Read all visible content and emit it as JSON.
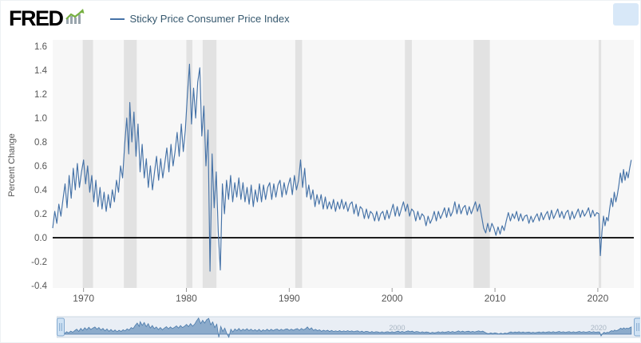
{
  "header": {
    "logo": "FRED",
    "legend_label": "Sticky Price Consumer Price Index"
  },
  "colors": {
    "series": "#4572a7",
    "recession_band": "#e2e2e2",
    "plot_bg": "#f7f7f7",
    "zero_line": "#000000",
    "axis_text": "#555555",
    "brush_bg": "#e9eef5",
    "brush_border": "#c5d3e0",
    "brush_fill": "#82a3c6",
    "brush_stroke": "#4c7bab",
    "brush_label": "#a9b6c3",
    "handle_fill": "#cfe2f4",
    "handle_border": "#83a9cf",
    "logo_green": "#76b041",
    "logo_gray": "#9aa5ad"
  },
  "chart_data": {
    "type": "line",
    "title": "Sticky Price Consumer Price Index",
    "xlabel": "",
    "ylabel": "Percent Change",
    "x_range": [
      1967,
      2023.5
    ],
    "ylim": [
      -0.4,
      1.6
    ],
    "y_tick_labels": [
      "1.6",
      "1.4",
      "1.2",
      "1.0",
      "0.8",
      "0.6",
      "0.4",
      "0.2",
      "0.0",
      "-0.2",
      "-0.4"
    ],
    "x_tick_labels": [
      "1970",
      "1980",
      "1990",
      "2000",
      "2010",
      "2020"
    ],
    "grid": "off",
    "legend_position": "top",
    "recessions": [
      [
        1969.92,
        1970.92
      ],
      [
        1973.92,
        1975.17
      ],
      [
        1980.0,
        1980.58
      ],
      [
        1981.58,
        1982.92
      ],
      [
        1990.58,
        1991.25
      ],
      [
        2001.25,
        2001.92
      ],
      [
        2007.92,
        2009.5
      ],
      [
        2020.08,
        2020.33
      ]
    ],
    "series": [
      {
        "name": "Sticky Price Consumer Price Index",
        "points": [
          [
            1967.0,
            0.08
          ],
          [
            1967.2,
            0.22
          ],
          [
            1967.4,
            0.12
          ],
          [
            1967.6,
            0.28
          ],
          [
            1967.8,
            0.18
          ],
          [
            1968.0,
            0.32
          ],
          [
            1968.2,
            0.45
          ],
          [
            1968.4,
            0.25
          ],
          [
            1968.6,
            0.52
          ],
          [
            1968.8,
            0.33
          ],
          [
            1969.0,
            0.58
          ],
          [
            1969.2,
            0.4
          ],
          [
            1969.4,
            0.62
          ],
          [
            1969.6,
            0.42
          ],
          [
            1969.8,
            0.55
          ],
          [
            1970.0,
            0.65
          ],
          [
            1970.2,
            0.45
          ],
          [
            1970.4,
            0.6
          ],
          [
            1970.6,
            0.38
          ],
          [
            1970.8,
            0.52
          ],
          [
            1971.0,
            0.3
          ],
          [
            1971.2,
            0.48
          ],
          [
            1971.4,
            0.26
          ],
          [
            1971.6,
            0.42
          ],
          [
            1971.8,
            0.24
          ],
          [
            1972.0,
            0.38
          ],
          [
            1972.2,
            0.22
          ],
          [
            1972.4,
            0.36
          ],
          [
            1972.6,
            0.25
          ],
          [
            1972.8,
            0.4
          ],
          [
            1973.0,
            0.3
          ],
          [
            1973.2,
            0.48
          ],
          [
            1973.4,
            0.38
          ],
          [
            1973.6,
            0.6
          ],
          [
            1973.8,
            0.5
          ],
          [
            1974.0,
            0.78
          ],
          [
            1974.2,
            1.0
          ],
          [
            1974.4,
            0.7
          ],
          [
            1974.5,
            1.13
          ],
          [
            1974.7,
            0.8
          ],
          [
            1974.9,
            1.05
          ],
          [
            1975.1,
            0.68
          ],
          [
            1975.3,
            0.95
          ],
          [
            1975.5,
            0.55
          ],
          [
            1975.7,
            0.78
          ],
          [
            1975.9,
            0.5
          ],
          [
            1976.1,
            0.66
          ],
          [
            1976.3,
            0.42
          ],
          [
            1976.5,
            0.6
          ],
          [
            1976.7,
            0.4
          ],
          [
            1976.9,
            0.55
          ],
          [
            1977.1,
            0.68
          ],
          [
            1977.3,
            0.48
          ],
          [
            1977.5,
            0.66
          ],
          [
            1977.7,
            0.5
          ],
          [
            1977.9,
            0.62
          ],
          [
            1978.1,
            0.75
          ],
          [
            1978.3,
            0.55
          ],
          [
            1978.5,
            0.78
          ],
          [
            1978.7,
            0.6
          ],
          [
            1978.9,
            0.72
          ],
          [
            1979.1,
            0.88
          ],
          [
            1979.3,
            0.68
          ],
          [
            1979.5,
            0.95
          ],
          [
            1979.7,
            0.72
          ],
          [
            1979.9,
            0.9
          ],
          [
            1980.1,
            1.2
          ],
          [
            1980.3,
            1.45
          ],
          [
            1980.5,
            0.95
          ],
          [
            1980.7,
            1.25
          ],
          [
            1980.9,
            1.0
          ],
          [
            1981.1,
            1.3
          ],
          [
            1981.3,
            1.42
          ],
          [
            1981.5,
            0.85
          ],
          [
            1981.7,
            1.1
          ],
          [
            1981.9,
            0.6
          ],
          [
            1982.1,
            0.9
          ],
          [
            1982.3,
            -0.28
          ],
          [
            1982.5,
            0.7
          ],
          [
            1982.7,
            0.25
          ],
          [
            1982.9,
            0.55
          ],
          [
            1983.1,
            0.05
          ],
          [
            1983.3,
            -0.27
          ],
          [
            1983.5,
            0.45
          ],
          [
            1983.7,
            0.2
          ],
          [
            1983.9,
            0.48
          ],
          [
            1984.1,
            0.32
          ],
          [
            1984.3,
            0.52
          ],
          [
            1984.5,
            0.3
          ],
          [
            1984.7,
            0.46
          ],
          [
            1984.9,
            0.34
          ],
          [
            1985.1,
            0.5
          ],
          [
            1985.3,
            0.32
          ],
          [
            1985.5,
            0.46
          ],
          [
            1985.7,
            0.3
          ],
          [
            1985.9,
            0.42
          ],
          [
            1986.1,
            0.28
          ],
          [
            1986.3,
            0.44
          ],
          [
            1986.5,
            0.26
          ],
          [
            1986.7,
            0.4
          ],
          [
            1986.9,
            0.3
          ],
          [
            1987.1,
            0.45
          ],
          [
            1987.3,
            0.3
          ],
          [
            1987.5,
            0.44
          ],
          [
            1987.7,
            0.32
          ],
          [
            1987.9,
            0.42
          ],
          [
            1988.1,
            0.46
          ],
          [
            1988.3,
            0.32
          ],
          [
            1988.5,
            0.45
          ],
          [
            1988.7,
            0.34
          ],
          [
            1988.9,
            0.44
          ],
          [
            1989.1,
            0.48
          ],
          [
            1989.3,
            0.34
          ],
          [
            1989.5,
            0.46
          ],
          [
            1989.7,
            0.36
          ],
          [
            1989.9,
            0.44
          ],
          [
            1990.1,
            0.5
          ],
          [
            1990.3,
            0.36
          ],
          [
            1990.5,
            0.52
          ],
          [
            1990.7,
            0.4
          ],
          [
            1990.9,
            0.48
          ],
          [
            1991.1,
            0.65
          ],
          [
            1991.3,
            0.42
          ],
          [
            1991.5,
            0.58
          ],
          [
            1991.7,
            0.34
          ],
          [
            1991.9,
            0.44
          ],
          [
            1992.1,
            0.32
          ],
          [
            1992.3,
            0.4
          ],
          [
            1992.5,
            0.26
          ],
          [
            1992.7,
            0.36
          ],
          [
            1992.9,
            0.28
          ],
          [
            1993.1,
            0.36
          ],
          [
            1993.3,
            0.24
          ],
          [
            1993.5,
            0.34
          ],
          [
            1993.7,
            0.24
          ],
          [
            1993.9,
            0.3
          ],
          [
            1994.1,
            0.24
          ],
          [
            1994.3,
            0.32
          ],
          [
            1994.5,
            0.22
          ],
          [
            1994.7,
            0.3
          ],
          [
            1994.9,
            0.24
          ],
          [
            1995.1,
            0.32
          ],
          [
            1995.3,
            0.24
          ],
          [
            1995.5,
            0.3
          ],
          [
            1995.7,
            0.22
          ],
          [
            1995.9,
            0.28
          ],
          [
            1996.1,
            0.3
          ],
          [
            1996.3,
            0.2
          ],
          [
            1996.5,
            0.28
          ],
          [
            1996.7,
            0.18
          ],
          [
            1996.9,
            0.26
          ],
          [
            1997.1,
            0.24
          ],
          [
            1997.3,
            0.16
          ],
          [
            1997.5,
            0.24
          ],
          [
            1997.7,
            0.16
          ],
          [
            1997.9,
            0.22
          ],
          [
            1998.1,
            0.2
          ],
          [
            1998.3,
            0.14
          ],
          [
            1998.5,
            0.22
          ],
          [
            1998.7,
            0.14
          ],
          [
            1998.9,
            0.2
          ],
          [
            1999.1,
            0.22
          ],
          [
            1999.3,
            0.15
          ],
          [
            1999.5,
            0.23
          ],
          [
            1999.7,
            0.16
          ],
          [
            1999.9,
            0.22
          ],
          [
            2000.1,
            0.28
          ],
          [
            2000.3,
            0.18
          ],
          [
            2000.5,
            0.26
          ],
          [
            2000.7,
            0.18
          ],
          [
            2000.9,
            0.24
          ],
          [
            2001.1,
            0.3
          ],
          [
            2001.3,
            0.22
          ],
          [
            2001.5,
            0.28
          ],
          [
            2001.7,
            0.18
          ],
          [
            2001.9,
            0.24
          ],
          [
            2002.1,
            0.22
          ],
          [
            2002.3,
            0.14
          ],
          [
            2002.5,
            0.22
          ],
          [
            2002.7,
            0.15
          ],
          [
            2002.9,
            0.2
          ],
          [
            2003.1,
            0.18
          ],
          [
            2003.3,
            0.1
          ],
          [
            2003.5,
            0.18
          ],
          [
            2003.7,
            0.12
          ],
          [
            2003.9,
            0.16
          ],
          [
            2004.1,
            0.22
          ],
          [
            2004.3,
            0.14
          ],
          [
            2004.5,
            0.22
          ],
          [
            2004.7,
            0.16
          ],
          [
            2004.9,
            0.2
          ],
          [
            2005.1,
            0.25
          ],
          [
            2005.3,
            0.17
          ],
          [
            2005.5,
            0.25
          ],
          [
            2005.7,
            0.18
          ],
          [
            2005.9,
            0.22
          ],
          [
            2006.1,
            0.3
          ],
          [
            2006.3,
            0.2
          ],
          [
            2006.5,
            0.28
          ],
          [
            2006.7,
            0.2
          ],
          [
            2006.9,
            0.25
          ],
          [
            2007.1,
            0.27
          ],
          [
            2007.3,
            0.19
          ],
          [
            2007.5,
            0.26
          ],
          [
            2007.7,
            0.2
          ],
          [
            2007.9,
            0.25
          ],
          [
            2008.1,
            0.3
          ],
          [
            2008.3,
            0.22
          ],
          [
            2008.5,
            0.28
          ],
          [
            2008.7,
            0.18
          ],
          [
            2008.9,
            0.08
          ],
          [
            2009.1,
            0.04
          ],
          [
            2009.3,
            0.12
          ],
          [
            2009.5,
            0.05
          ],
          [
            2009.7,
            0.12
          ],
          [
            2009.9,
            0.08
          ],
          [
            2010.1,
            0.02
          ],
          [
            2010.3,
            0.09
          ],
          [
            2010.5,
            0.03
          ],
          [
            2010.7,
            0.1
          ],
          [
            2010.9,
            0.06
          ],
          [
            2011.1,
            0.14
          ],
          [
            2011.3,
            0.21
          ],
          [
            2011.5,
            0.14
          ],
          [
            2011.7,
            0.2
          ],
          [
            2011.9,
            0.16
          ],
          [
            2012.1,
            0.22
          ],
          [
            2012.3,
            0.14
          ],
          [
            2012.5,
            0.2
          ],
          [
            2012.7,
            0.14
          ],
          [
            2012.9,
            0.18
          ],
          [
            2013.1,
            0.19
          ],
          [
            2013.3,
            0.12
          ],
          [
            2013.5,
            0.18
          ],
          [
            2013.7,
            0.13
          ],
          [
            2013.9,
            0.17
          ],
          [
            2014.1,
            0.2
          ],
          [
            2014.3,
            0.14
          ],
          [
            2014.5,
            0.21
          ],
          [
            2014.7,
            0.15
          ],
          [
            2014.9,
            0.19
          ],
          [
            2015.1,
            0.22
          ],
          [
            2015.3,
            0.15
          ],
          [
            2015.5,
            0.23
          ],
          [
            2015.7,
            0.16
          ],
          [
            2015.9,
            0.2
          ],
          [
            2016.1,
            0.24
          ],
          [
            2016.3,
            0.17
          ],
          [
            2016.5,
            0.22
          ],
          [
            2016.7,
            0.16
          ],
          [
            2016.9,
            0.21
          ],
          [
            2017.1,
            0.23
          ],
          [
            2017.3,
            0.15
          ],
          [
            2017.5,
            0.22
          ],
          [
            2017.7,
            0.16
          ],
          [
            2017.9,
            0.2
          ],
          [
            2018.1,
            0.24
          ],
          [
            2018.3,
            0.17
          ],
          [
            2018.5,
            0.23
          ],
          [
            2018.7,
            0.18
          ],
          [
            2018.9,
            0.21
          ],
          [
            2019.1,
            0.25
          ],
          [
            2019.3,
            0.17
          ],
          [
            2019.5,
            0.23
          ],
          [
            2019.7,
            0.18
          ],
          [
            2019.9,
            0.21
          ],
          [
            2020.1,
            0.2
          ],
          [
            2020.25,
            -0.15
          ],
          [
            2020.4,
            0.05
          ],
          [
            2020.55,
            0.18
          ],
          [
            2020.7,
            0.1
          ],
          [
            2020.85,
            0.17
          ],
          [
            2021.0,
            0.14
          ],
          [
            2021.15,
            0.24
          ],
          [
            2021.3,
            0.33
          ],
          [
            2021.45,
            0.26
          ],
          [
            2021.6,
            0.38
          ],
          [
            2021.75,
            0.3
          ],
          [
            2021.9,
            0.36
          ],
          [
            2022.05,
            0.44
          ],
          [
            2022.2,
            0.54
          ],
          [
            2022.35,
            0.46
          ],
          [
            2022.5,
            0.57
          ],
          [
            2022.65,
            0.48
          ],
          [
            2022.8,
            0.55
          ],
          [
            2022.95,
            0.5
          ],
          [
            2023.1,
            0.58
          ],
          [
            2023.25,
            0.65
          ]
        ]
      }
    ]
  },
  "brush": {
    "labels": [
      {
        "year": 2000,
        "label": "2000"
      },
      {
        "year": 2020,
        "label": "2020"
      }
    ]
  }
}
